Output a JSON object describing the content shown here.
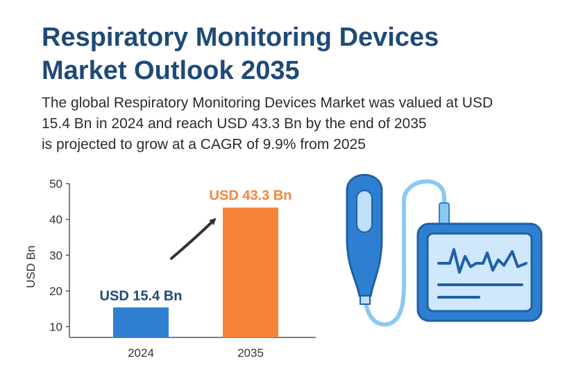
{
  "header": {
    "title_lines": [
      "Respiratory Monitoring Devices",
      "Market Outlook 2035"
    ],
    "description_lines": [
      "The global Respiratory Monitoring Devices Market was valued at USD",
      "15.4 Bn in 2024 and reach USD 43.3 Bn by the end of 2035",
      "is projected to grow at a CAGR of 9.9% from 2025"
    ]
  },
  "chart_data": {
    "type": "bar",
    "categories": [
      "2024",
      "2035"
    ],
    "values": [
      15.4,
      43.3
    ],
    "data_labels": [
      "USD 15.4 Bn",
      "USD 43.3 Bn"
    ],
    "bar_colors": [
      "#2f7fd1",
      "#f5843a"
    ],
    "label_colors": [
      "#1f4a77",
      "#f5843a"
    ],
    "title": "",
    "xlabel": "",
    "ylabel": "USD Bn",
    "ylim": [
      7,
      50
    ],
    "yticks": [
      10,
      20,
      30,
      40,
      50
    ],
    "grid": false,
    "legend": "none",
    "annotation": "arrow from 2024 bar to 2035 bar"
  },
  "illustration": {
    "icon": "respiratory-monitor-device-icon",
    "colors": {
      "primary": "#2f7fd1",
      "light": "#bfe0fb",
      "cable": "#8cc8f2",
      "trace": "#1f5fa8"
    }
  }
}
